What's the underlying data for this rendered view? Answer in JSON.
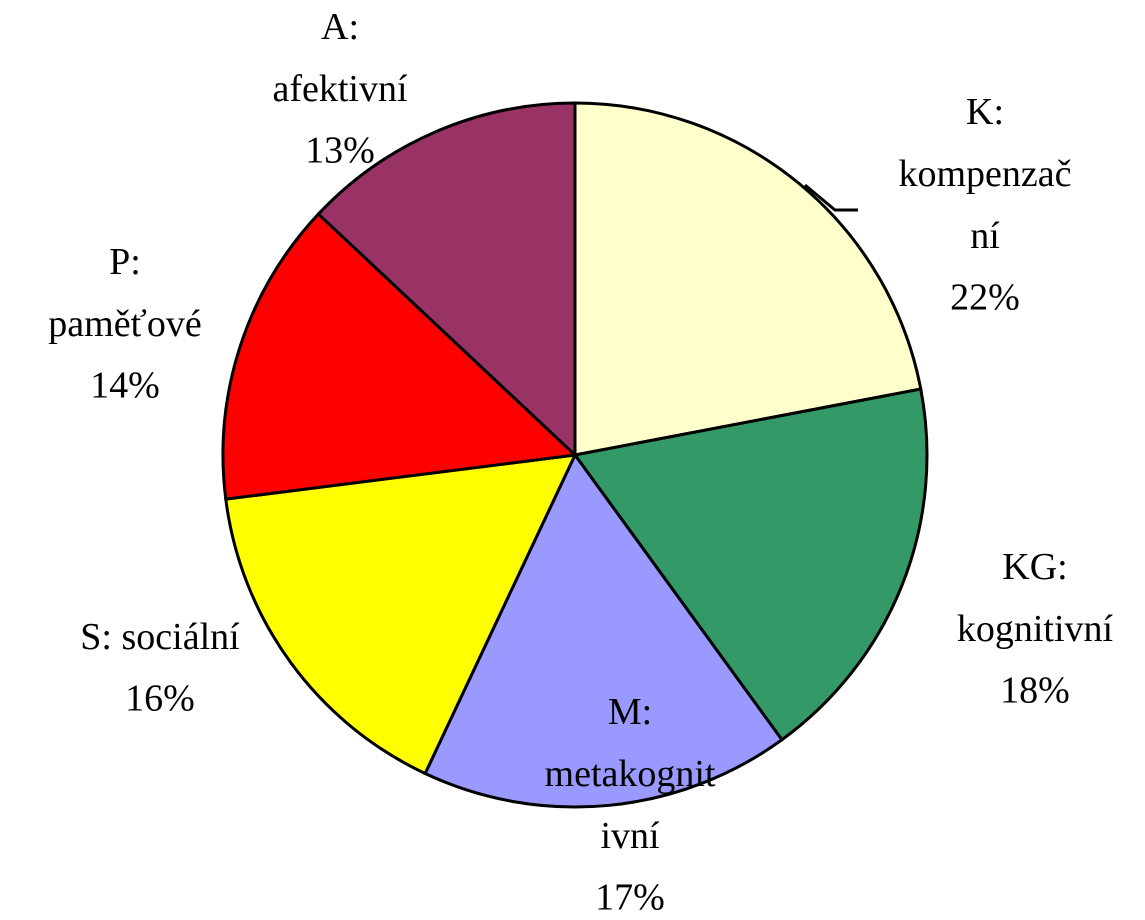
{
  "chart_data": {
    "type": "pie",
    "categories": [
      "K:\nkompenzač\nní",
      "KG:\nkognitivní",
      "M:\nmetakognit\nivní",
      "S: sociální",
      "P:\npaměťové",
      "A:\nafektivní"
    ],
    "values": [
      22,
      18,
      17,
      16,
      14,
      13
    ],
    "value_labels": [
      "22%",
      "18%",
      "17%",
      "16%",
      "14%",
      "13%"
    ],
    "colors": [
      "#ffffcc",
      "#339966",
      "#9999ff",
      "#ffff00",
      "#ff0000",
      "#993366"
    ]
  }
}
